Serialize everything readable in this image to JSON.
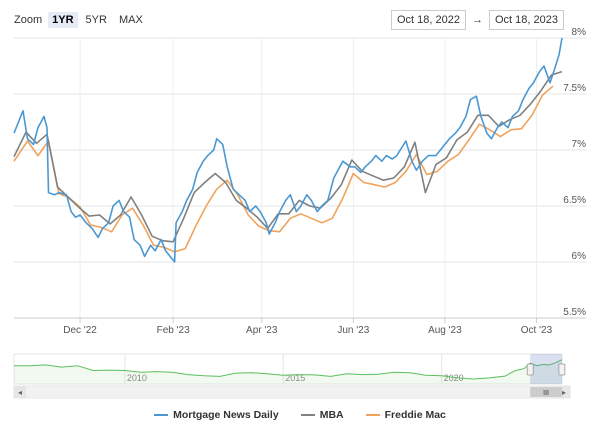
{
  "zoom": {
    "label": "Zoom",
    "buttons": [
      "1YR",
      "5YR",
      "MAX"
    ],
    "active": "1YR"
  },
  "range": {
    "from": "Oct 18, 2022",
    "arrow": "→",
    "to": "Oct 18, 2023"
  },
  "chart_data": {
    "type": "line",
    "title": "",
    "xlabel": "",
    "ylabel": "",
    "x_range": [
      "2022-10-18",
      "2023-10-18"
    ],
    "ylim": [
      5.5,
      8.0
    ],
    "y_ticks": [
      "5.5%",
      "6%",
      "6.5%",
      "7%",
      "7.5%",
      "8%"
    ],
    "y_tick_values": [
      5.5,
      6.0,
      6.5,
      7.0,
      7.5,
      8.0
    ],
    "x_ticks": [
      "Dec '22",
      "Feb '23",
      "Apr '23",
      "Jun '23",
      "Aug '23",
      "Oct '23"
    ],
    "x_tick_dates": [
      "2022-12-01",
      "2023-02-01",
      "2023-04-01",
      "2023-06-01",
      "2023-08-01",
      "2023-10-01"
    ],
    "grid": true,
    "legend_position": "bottom-center",
    "series": [
      {
        "name": "Mortgage News Daily",
        "color": "#4a98d3",
        "points": [
          [
            "2022-10-18",
            7.15
          ],
          [
            "2022-10-21",
            7.25
          ],
          [
            "2022-10-24",
            7.35
          ],
          [
            "2022-10-27",
            7.1
          ],
          [
            "2022-10-31",
            7.05
          ],
          [
            "2022-11-03",
            7.2
          ],
          [
            "2022-11-07",
            7.3
          ],
          [
            "2022-11-09",
            7.2
          ],
          [
            "2022-11-10",
            6.62
          ],
          [
            "2022-11-14",
            6.6
          ],
          [
            "2022-11-17",
            6.62
          ],
          [
            "2022-11-22",
            6.6
          ],
          [
            "2022-11-25",
            6.45
          ],
          [
            "2022-11-28",
            6.4
          ],
          [
            "2022-12-01",
            6.42
          ],
          [
            "2022-12-05",
            6.35
          ],
          [
            "2022-12-09",
            6.3
          ],
          [
            "2022-12-13",
            6.22
          ],
          [
            "2022-12-16",
            6.3
          ],
          [
            "2022-12-20",
            6.35
          ],
          [
            "2022-12-23",
            6.5
          ],
          [
            "2022-12-27",
            6.55
          ],
          [
            "2022-12-30",
            6.45
          ],
          [
            "2023-01-03",
            6.4
          ],
          [
            "2023-01-06",
            6.2
          ],
          [
            "2023-01-10",
            6.15
          ],
          [
            "2023-01-13",
            6.05
          ],
          [
            "2023-01-17",
            6.15
          ],
          [
            "2023-01-20",
            6.1
          ],
          [
            "2023-01-24",
            6.2
          ],
          [
            "2023-01-27",
            6.1
          ],
          [
            "2023-02-02",
            6.0
          ],
          [
            "2023-02-03",
            6.35
          ],
          [
            "2023-02-07",
            6.45
          ],
          [
            "2023-02-10",
            6.55
          ],
          [
            "2023-02-14",
            6.65
          ],
          [
            "2023-02-17",
            6.8
          ],
          [
            "2023-02-21",
            6.9
          ],
          [
            "2023-02-24",
            6.95
          ],
          [
            "2023-02-28",
            7.0
          ],
          [
            "2023-03-02",
            7.1
          ],
          [
            "2023-03-06",
            7.05
          ],
          [
            "2023-03-09",
            6.85
          ],
          [
            "2023-03-13",
            6.65
          ],
          [
            "2023-03-17",
            6.6
          ],
          [
            "2023-03-21",
            6.55
          ],
          [
            "2023-03-24",
            6.45
          ],
          [
            "2023-03-28",
            6.5
          ],
          [
            "2023-03-31",
            6.45
          ],
          [
            "2023-04-04",
            6.35
          ],
          [
            "2023-04-06",
            6.25
          ],
          [
            "2023-04-10",
            6.35
          ],
          [
            "2023-04-13",
            6.45
          ],
          [
            "2023-04-17",
            6.55
          ],
          [
            "2023-04-20",
            6.6
          ],
          [
            "2023-04-24",
            6.45
          ],
          [
            "2023-04-27",
            6.5
          ],
          [
            "2023-05-01",
            6.6
          ],
          [
            "2023-05-04",
            6.55
          ],
          [
            "2023-05-08",
            6.45
          ],
          [
            "2023-05-11",
            6.5
          ],
          [
            "2023-05-15",
            6.55
          ],
          [
            "2023-05-19",
            6.75
          ],
          [
            "2023-05-25",
            6.9
          ],
          [
            "2023-05-30",
            6.85
          ],
          [
            "2023-06-02",
            6.85
          ],
          [
            "2023-06-06",
            6.8
          ],
          [
            "2023-06-09",
            6.85
          ],
          [
            "2023-06-13",
            6.9
          ],
          [
            "2023-06-16",
            6.95
          ],
          [
            "2023-06-20",
            6.9
          ],
          [
            "2023-06-23",
            6.95
          ],
          [
            "2023-06-27",
            6.92
          ],
          [
            "2023-06-30",
            6.95
          ],
          [
            "2023-07-06",
            7.08
          ],
          [
            "2023-07-10",
            6.9
          ],
          [
            "2023-07-13",
            6.82
          ],
          [
            "2023-07-17",
            6.9
          ],
          [
            "2023-07-21",
            6.95
          ],
          [
            "2023-07-26",
            6.95
          ],
          [
            "2023-08-01",
            7.05
          ],
          [
            "2023-08-04",
            7.1
          ],
          [
            "2023-08-08",
            7.15
          ],
          [
            "2023-08-11",
            7.2
          ],
          [
            "2023-08-15",
            7.3
          ],
          [
            "2023-08-18",
            7.45
          ],
          [
            "2023-08-22",
            7.48
          ],
          [
            "2023-08-25",
            7.3
          ],
          [
            "2023-08-29",
            7.15
          ],
          [
            "2023-09-01",
            7.1
          ],
          [
            "2023-09-05",
            7.2
          ],
          [
            "2023-09-08",
            7.25
          ],
          [
            "2023-09-12",
            7.2
          ],
          [
            "2023-09-15",
            7.3
          ],
          [
            "2023-09-19",
            7.35
          ],
          [
            "2023-09-22",
            7.45
          ],
          [
            "2023-09-26",
            7.55
          ],
          [
            "2023-09-29",
            7.6
          ],
          [
            "2023-10-03",
            7.7
          ],
          [
            "2023-10-06",
            7.75
          ],
          [
            "2023-10-10",
            7.6
          ],
          [
            "2023-10-13",
            7.72
          ],
          [
            "2023-10-16",
            7.85
          ],
          [
            "2023-10-18",
            8.0
          ]
        ]
      },
      {
        "name": "MBA",
        "color": "#808080",
        "points": [
          [
            "2022-10-18",
            6.94
          ],
          [
            "2022-10-26",
            7.16
          ],
          [
            "2022-11-02",
            7.06
          ],
          [
            "2022-11-09",
            7.14
          ],
          [
            "2022-11-16",
            6.67
          ],
          [
            "2022-11-23",
            6.58
          ],
          [
            "2022-11-30",
            6.49
          ],
          [
            "2022-12-07",
            6.41
          ],
          [
            "2022-12-14",
            6.42
          ],
          [
            "2022-12-21",
            6.34
          ],
          [
            "2022-12-28",
            6.42
          ],
          [
            "2023-01-04",
            6.58
          ],
          [
            "2023-01-11",
            6.42
          ],
          [
            "2023-01-18",
            6.23
          ],
          [
            "2023-01-25",
            6.19
          ],
          [
            "2023-02-01",
            6.18
          ],
          [
            "2023-02-08",
            6.39
          ],
          [
            "2023-02-15",
            6.62
          ],
          [
            "2023-02-22",
            6.71
          ],
          [
            "2023-03-01",
            6.79
          ],
          [
            "2023-03-08",
            6.71
          ],
          [
            "2023-03-15",
            6.55
          ],
          [
            "2023-03-22",
            6.48
          ],
          [
            "2023-03-29",
            6.4
          ],
          [
            "2023-04-05",
            6.3
          ],
          [
            "2023-04-12",
            6.43
          ],
          [
            "2023-04-19",
            6.43
          ],
          [
            "2023-04-26",
            6.55
          ],
          [
            "2023-05-03",
            6.5
          ],
          [
            "2023-05-10",
            6.48
          ],
          [
            "2023-05-17",
            6.57
          ],
          [
            "2023-05-24",
            6.69
          ],
          [
            "2023-05-31",
            6.91
          ],
          [
            "2023-06-07",
            6.81
          ],
          [
            "2023-06-14",
            6.77
          ],
          [
            "2023-06-21",
            6.73
          ],
          [
            "2023-06-28",
            6.75
          ],
          [
            "2023-07-05",
            6.85
          ],
          [
            "2023-07-12",
            7.07
          ],
          [
            "2023-07-19",
            6.62
          ],
          [
            "2023-07-26",
            6.87
          ],
          [
            "2023-08-02",
            6.93
          ],
          [
            "2023-08-09",
            7.09
          ],
          [
            "2023-08-16",
            7.16
          ],
          [
            "2023-08-23",
            7.31
          ],
          [
            "2023-08-30",
            7.31
          ],
          [
            "2023-09-06",
            7.21
          ],
          [
            "2023-09-13",
            7.27
          ],
          [
            "2023-09-20",
            7.31
          ],
          [
            "2023-09-27",
            7.41
          ],
          [
            "2023-10-04",
            7.53
          ],
          [
            "2023-10-11",
            7.67
          ],
          [
            "2023-10-18",
            7.7
          ]
        ]
      },
      {
        "name": "Freddie Mac",
        "color": "#f0a35c",
        "points": [
          [
            "2022-10-18",
            6.9
          ],
          [
            "2022-10-20",
            6.94
          ],
          [
            "2022-10-27",
            7.08
          ],
          [
            "2022-11-03",
            6.95
          ],
          [
            "2022-11-10",
            7.08
          ],
          [
            "2022-11-17",
            6.61
          ],
          [
            "2022-11-23",
            6.58
          ],
          [
            "2022-12-01",
            6.49
          ],
          [
            "2022-12-08",
            6.33
          ],
          [
            "2022-12-15",
            6.31
          ],
          [
            "2022-12-22",
            6.27
          ],
          [
            "2022-12-29",
            6.42
          ],
          [
            "2023-01-05",
            6.48
          ],
          [
            "2023-01-12",
            6.33
          ],
          [
            "2023-01-19",
            6.15
          ],
          [
            "2023-01-26",
            6.13
          ],
          [
            "2023-02-02",
            6.09
          ],
          [
            "2023-02-09",
            6.12
          ],
          [
            "2023-02-16",
            6.32
          ],
          [
            "2023-02-23",
            6.5
          ],
          [
            "2023-03-02",
            6.65
          ],
          [
            "2023-03-09",
            6.73
          ],
          [
            "2023-03-16",
            6.6
          ],
          [
            "2023-03-23",
            6.42
          ],
          [
            "2023-03-30",
            6.32
          ],
          [
            "2023-04-06",
            6.28
          ],
          [
            "2023-04-13",
            6.27
          ],
          [
            "2023-04-20",
            6.39
          ],
          [
            "2023-04-27",
            6.43
          ],
          [
            "2023-05-04",
            6.39
          ],
          [
            "2023-05-11",
            6.35
          ],
          [
            "2023-05-18",
            6.39
          ],
          [
            "2023-05-25",
            6.57
          ],
          [
            "2023-06-01",
            6.79
          ],
          [
            "2023-06-08",
            6.71
          ],
          [
            "2023-06-15",
            6.69
          ],
          [
            "2023-06-22",
            6.67
          ],
          [
            "2023-06-29",
            6.71
          ],
          [
            "2023-07-06",
            6.81
          ],
          [
            "2023-07-13",
            6.96
          ],
          [
            "2023-07-20",
            6.78
          ],
          [
            "2023-07-27",
            6.81
          ],
          [
            "2023-08-03",
            6.9
          ],
          [
            "2023-08-10",
            6.96
          ],
          [
            "2023-08-17",
            7.09
          ],
          [
            "2023-08-24",
            7.23
          ],
          [
            "2023-08-31",
            7.18
          ],
          [
            "2023-09-07",
            7.12
          ],
          [
            "2023-09-14",
            7.18
          ],
          [
            "2023-09-21",
            7.19
          ],
          [
            "2023-09-28",
            7.31
          ],
          [
            "2023-10-05",
            7.49
          ],
          [
            "2023-10-12",
            7.57
          ]
        ]
      }
    ]
  },
  "navigator": {
    "year_labels": [
      "2010",
      "2015",
      "2020"
    ],
    "year_values": [
      2010,
      2015,
      2020
    ],
    "start_year": 2006.5,
    "end_year": 2023.8,
    "selected_from": "2022-10-18",
    "selected_to": "2023-10-18",
    "handle_label": "III",
    "left_arrow": "◂",
    "right_arrow": "▸",
    "history": [
      [
        2006.5,
        6.4
      ],
      [
        2007.0,
        6.4
      ],
      [
        2007.5,
        6.6
      ],
      [
        2008.0,
        6.0
      ],
      [
        2008.5,
        6.4
      ],
      [
        2009.0,
        5.1
      ],
      [
        2009.5,
        5.2
      ],
      [
        2010.0,
        5.1
      ],
      [
        2010.5,
        4.6
      ],
      [
        2011.0,
        4.8
      ],
      [
        2011.5,
        4.6
      ],
      [
        2012.0,
        4.0
      ],
      [
        2012.5,
        3.7
      ],
      [
        2013.0,
        3.5
      ],
      [
        2013.5,
        4.4
      ],
      [
        2014.0,
        4.5
      ],
      [
        2014.5,
        4.2
      ],
      [
        2015.0,
        3.8
      ],
      [
        2015.5,
        4.0
      ],
      [
        2016.0,
        3.9
      ],
      [
        2016.5,
        3.5
      ],
      [
        2017.0,
        4.2
      ],
      [
        2017.5,
        4.0
      ],
      [
        2018.0,
        4.1
      ],
      [
        2018.5,
        4.6
      ],
      [
        2019.0,
        4.5
      ],
      [
        2019.5,
        3.8
      ],
      [
        2020.0,
        3.7
      ],
      [
        2020.5,
        3.1
      ],
      [
        2021.0,
        2.8
      ],
      [
        2021.5,
        3.1
      ],
      [
        2022.0,
        3.6
      ],
      [
        2022.3,
        5.0
      ],
      [
        2022.6,
        5.6
      ],
      [
        2022.8,
        7.1
      ],
      [
        2023.0,
        6.4
      ],
      [
        2023.2,
        6.7
      ],
      [
        2023.4,
        6.6
      ],
      [
        2023.6,
        7.2
      ],
      [
        2023.8,
        8.0
      ]
    ]
  }
}
